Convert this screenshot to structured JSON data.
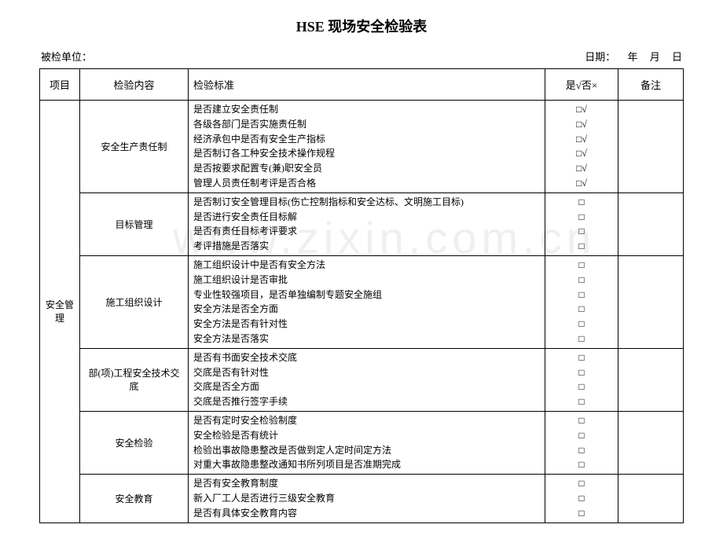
{
  "title": "HSE 现场安全检验表",
  "header": {
    "unit_label": "被检单位：",
    "date_label": "日期：",
    "year": "年",
    "month": "月",
    "day": "日"
  },
  "columns": {
    "project": "项目",
    "content": "检验内容",
    "standard": "检验标准",
    "check": "是√否×",
    "notes": "备注"
  },
  "watermark": "www.zixin.com.cn",
  "project_label": "安全管理",
  "sections": [
    {
      "content": "安全生产责任制",
      "items": [
        {
          "text": "是否建立安全责任制",
          "mark": "□√"
        },
        {
          "text": "各级各部门是否实施责任制",
          "mark": "□√"
        },
        {
          "text": "经济承包中是否有安全生产指标",
          "mark": "□√"
        },
        {
          "text": "是否制订各工种安全技术操作规程",
          "mark": "□√"
        },
        {
          "text": "是否按要求配置专(兼)职安全员",
          "mark": "□√"
        },
        {
          "text": "管理人员责任制考评是否合格",
          "mark": "□√"
        }
      ]
    },
    {
      "content": "目标管理",
      "items": [
        {
          "text": "是否制订安全管理目标(伤亡控制指标和安全达标、文明施工目标)",
          "mark": "□"
        },
        {
          "text": "是否进行安全责任目标解",
          "mark": "□"
        },
        {
          "text": "是否有责任目标考评要求",
          "mark": "□"
        },
        {
          "text": "考评措施是否落实",
          "mark": "□"
        }
      ]
    },
    {
      "content": "施工组织设计",
      "items": [
        {
          "text": "施工组织设计中是否有安全方法",
          "mark": "□"
        },
        {
          "text": "施工组织设计是否审批",
          "mark": "□"
        },
        {
          "text": "专业性较强项目，是否单独编制专题安全施组",
          "mark": "□"
        },
        {
          "text": "安全方法是否全方面",
          "mark": "□"
        },
        {
          "text": "安全方法是否有针对性",
          "mark": "□"
        },
        {
          "text": "安全方法是否落实",
          "mark": "□"
        }
      ]
    },
    {
      "content": "部(项)工程安全技术交底",
      "items": [
        {
          "text": "是否有书面安全技术交底",
          "mark": "□"
        },
        {
          "text": "交底是否有针对性",
          "mark": "□"
        },
        {
          "text": "交底是否全方面",
          "mark": "□"
        },
        {
          "text": "交底是否推行签字手续",
          "mark": "□"
        }
      ]
    },
    {
      "content": "安全检验",
      "items": [
        {
          "text": "是否有定时安全检验制度",
          "mark": "□"
        },
        {
          "text": "安全检验是否有统计",
          "mark": "□"
        },
        {
          "text": "检验出事故隐患整改是否做到定人定时间定方法",
          "mark": "□"
        },
        {
          "text": "对重大事故隐患整改通知书所列项目是否准期完成",
          "mark": "□"
        }
      ]
    },
    {
      "content": "安全教育",
      "items": [
        {
          "text": "是否有安全教育制度",
          "mark": "□"
        },
        {
          "text": "新入厂工人是否进行三级安全教育",
          "mark": "□"
        },
        {
          "text": "是否有具体安全教育内容",
          "mark": "□"
        }
      ]
    }
  ]
}
